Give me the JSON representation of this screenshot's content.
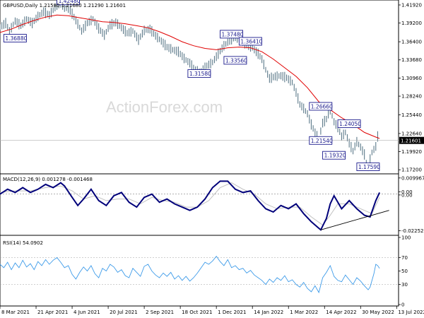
{
  "chart_data": [
    {
      "type": "candlestick",
      "pane": "price",
      "header": "GBPUSD,Daily  1.21580 1.21680 1.21290 1.21601",
      "symbol": "GBPUSD",
      "timeframe": "Daily",
      "ohlc": {
        "open": 1.2158,
        "high": 1.2168,
        "low": 1.2129,
        "close": 1.21601
      },
      "ylim": [
        1.168,
        1.4245
      ],
      "y_ticks": [
        "1.41920",
        "1.39200",
        "1.36400",
        "1.33680",
        "1.30960",
        "1.28240",
        "1.25440",
        "1.22640",
        "1.19920",
        "1.17200"
      ],
      "current_price_label": "1.21601",
      "current_price": 1.21601,
      "moving_average_color": "#e00000",
      "candle_color": "#5c7a8a",
      "series_path": [
        [
          0,
          1.386
        ],
        [
          3,
          1.392
        ],
        [
          5,
          1.38
        ],
        [
          8,
          1.395
        ],
        [
          11,
          1.388
        ],
        [
          14,
          1.398
        ],
        [
          17,
          1.392
        ],
        [
          20,
          1.402
        ],
        [
          23,
          1.409
        ],
        [
          26,
          1.404
        ],
        [
          29,
          1.415
        ],
        [
          31,
          1.422
        ],
        [
          34,
          1.416
        ],
        [
          37,
          1.411
        ],
        [
          40,
          1.396
        ],
        [
          43,
          1.38
        ],
        [
          46,
          1.392
        ],
        [
          49,
          1.398
        ],
        [
          52,
          1.384
        ],
        [
          55,
          1.374
        ],
        [
          58,
          1.389
        ],
        [
          61,
          1.393
        ],
        [
          64,
          1.385
        ],
        [
          67,
          1.377
        ],
        [
          70,
          1.38
        ],
        [
          73,
          1.367
        ],
        [
          76,
          1.381
        ],
        [
          79,
          1.383
        ],
        [
          82,
          1.373
        ],
        [
          85,
          1.365
        ],
        [
          88,
          1.356
        ],
        [
          91,
          1.352
        ],
        [
          94,
          1.349
        ],
        [
          97,
          1.339
        ],
        [
          100,
          1.332
        ],
        [
          103,
          1.321
        ],
        [
          106,
          1.319
        ],
        [
          109,
          1.328
        ],
        [
          112,
          1.333
        ],
        [
          115,
          1.346
        ],
        [
          118,
          1.358
        ],
        [
          121,
          1.366
        ],
        [
          124,
          1.371
        ],
        [
          127,
          1.367
        ],
        [
          130,
          1.359
        ],
        [
          133,
          1.355
        ],
        [
          136,
          1.346
        ],
        [
          138,
          1.338
        ],
        [
          140,
          1.322
        ],
        [
          142,
          1.309
        ],
        [
          145,
          1.312
        ],
        [
          148,
          1.313
        ],
        [
          151,
          1.31
        ],
        [
          154,
          1.303
        ],
        [
          156,
          1.288
        ],
        [
          158,
          1.27
        ],
        [
          160,
          1.264
        ],
        [
          162,
          1.256
        ],
        [
          164,
          1.24
        ],
        [
          166,
          1.228
        ],
        [
          168,
          1.218
        ],
        [
          170,
          1.242
        ],
        [
          172,
          1.248
        ],
        [
          174,
          1.262
        ],
        [
          176,
          1.244
        ],
        [
          178,
          1.236
        ],
        [
          180,
          1.222
        ],
        [
          182,
          1.228
        ],
        [
          184,
          1.212
        ],
        [
          186,
          1.2
        ],
        [
          188,
          1.214
        ],
        [
          190,
          1.206
        ],
        [
          192,
          1.195
        ],
        [
          193,
          1.182
        ],
        [
          194,
          1.176
        ],
        [
          195,
          1.188
        ],
        [
          196,
          1.198
        ],
        [
          198,
          1.207
        ],
        [
          199,
          1.222
        ],
        [
          200,
          1.216
        ]
      ],
      "ma_path": [
        [
          0,
          1.378
        ],
        [
          6,
          1.383
        ],
        [
          12,
          1.39
        ],
        [
          18,
          1.396
        ],
        [
          24,
          1.401
        ],
        [
          30,
          1.404
        ],
        [
          36,
          1.403
        ],
        [
          42,
          1.4
        ],
        [
          48,
          1.397
        ],
        [
          54,
          1.394
        ],
        [
          60,
          1.393
        ],
        [
          66,
          1.391
        ],
        [
          72,
          1.388
        ],
        [
          78,
          1.385
        ],
        [
          84,
          1.379
        ],
        [
          90,
          1.372
        ],
        [
          96,
          1.364
        ],
        [
          102,
          1.358
        ],
        [
          108,
          1.354
        ],
        [
          114,
          1.352
        ],
        [
          120,
          1.355
        ],
        [
          126,
          1.356
        ],
        [
          132,
          1.355
        ],
        [
          138,
          1.349
        ],
        [
          144,
          1.338
        ],
        [
          150,
          1.325
        ],
        [
          156,
          1.312
        ],
        [
          162,
          1.295
        ],
        [
          168,
          1.274
        ],
        [
          174,
          1.262
        ],
        [
          180,
          1.25
        ],
        [
          186,
          1.24
        ],
        [
          192,
          1.228
        ],
        [
          198,
          1.221
        ],
        [
          200,
          1.219
        ]
      ],
      "annotations": [
        {
          "text": "1.42480",
          "x": 30,
          "y": 1.4248
        },
        {
          "text": "1.36880",
          "x": 2,
          "y": 1.3688
        },
        {
          "text": "1.37480",
          "x": 116,
          "y": 1.3748
        },
        {
          "text": "1.36410",
          "x": 126,
          "y": 1.3641
        },
        {
          "text": "1.33560",
          "x": 118,
          "y": 1.3356
        },
        {
          "text": "1.31580",
          "x": 99,
          "y": 1.3158
        },
        {
          "text": "1.26660",
          "x": 163,
          "y": 1.2666
        },
        {
          "text": "1.24050",
          "x": 178,
          "y": 1.2405
        },
        {
          "text": "1.21540",
          "x": 163,
          "y": 1.2154
        },
        {
          "text": "1.19320",
          "x": 170,
          "y": 1.1932
        },
        {
          "text": "1.17590",
          "x": 188,
          "y": 1.1759
        }
      ],
      "watermark": "ActionForex.com"
    },
    {
      "type": "line",
      "pane": "macd",
      "header": "MACD(12,26,9) 0.001278 -0.001468",
      "name": "MACD(12,26,9)",
      "macd": 0.001278,
      "signal": -0.001468,
      "ylim": [
        -0.0245,
        0.0112
      ],
      "y_ticks": [
        "0.009967",
        "0.00",
        "0.00",
        "-0.022521"
      ],
      "macd_color": "#00007a",
      "signal_color": "#c0c0c0",
      "zero_line_color": "#808080",
      "trendline_color": "#000000",
      "macd_path": [
        [
          0,
          0.0
        ],
        [
          4,
          0.003
        ],
        [
          8,
          0.001
        ],
        [
          12,
          0.004
        ],
        [
          16,
          0.001
        ],
        [
          20,
          0.003
        ],
        [
          24,
          0.006
        ],
        [
          28,
          0.004
        ],
        [
          32,
          0.007
        ],
        [
          34,
          0.005
        ],
        [
          38,
          -0.002
        ],
        [
          41,
          -0.007
        ],
        [
          44,
          -0.003
        ],
        [
          48,
          0.003
        ],
        [
          52,
          -0.004
        ],
        [
          56,
          -0.007
        ],
        [
          60,
          -0.001
        ],
        [
          64,
          0.001
        ],
        [
          68,
          -0.005
        ],
        [
          72,
          -0.008
        ],
        [
          76,
          -0.002
        ],
        [
          80,
          0.0
        ],
        [
          84,
          -0.005
        ],
        [
          88,
          -0.003
        ],
        [
          92,
          -0.006
        ],
        [
          96,
          -0.008
        ],
        [
          100,
          -0.01
        ],
        [
          104,
          -0.008
        ],
        [
          108,
          -0.003
        ],
        [
          112,
          0.004
        ],
        [
          116,
          0.008
        ],
        [
          120,
          0.008
        ],
        [
          124,
          0.003
        ],
        [
          128,
          0.001
        ],
        [
          132,
          0.002
        ],
        [
          136,
          -0.004
        ],
        [
          140,
          -0.009
        ],
        [
          144,
          -0.011
        ],
        [
          148,
          -0.007
        ],
        [
          152,
          -0.009
        ],
        [
          156,
          -0.006
        ],
        [
          160,
          -0.012
        ],
        [
          164,
          -0.017
        ],
        [
          168,
          -0.021
        ],
        [
          169,
          -0.022
        ],
        [
          172,
          -0.015
        ],
        [
          174,
          -0.006
        ],
        [
          176,
          -0.001
        ],
        [
          178,
          -0.005
        ],
        [
          180,
          -0.009
        ],
        [
          184,
          -0.004
        ],
        [
          188,
          -0.009
        ],
        [
          192,
          -0.013
        ],
        [
          195,
          -0.014
        ],
        [
          198,
          -0.004
        ],
        [
          200,
          0.001
        ]
      ],
      "signal_path": [
        [
          0,
          0.001
        ],
        [
          8,
          0.002
        ],
        [
          16,
          0.002
        ],
        [
          24,
          0.004
        ],
        [
          32,
          0.005
        ],
        [
          38,
          0.002
        ],
        [
          44,
          -0.003
        ],
        [
          50,
          -0.001
        ],
        [
          56,
          -0.004
        ],
        [
          62,
          -0.003
        ],
        [
          68,
          -0.003
        ],
        [
          74,
          -0.006
        ],
        [
          80,
          -0.002
        ],
        [
          86,
          -0.004
        ],
        [
          92,
          -0.005
        ],
        [
          98,
          -0.008
        ],
        [
          104,
          -0.008
        ],
        [
          110,
          -0.004
        ],
        [
          116,
          0.004
        ],
        [
          122,
          0.007
        ],
        [
          128,
          0.003
        ],
        [
          134,
          0.0
        ],
        [
          140,
          -0.006
        ],
        [
          146,
          -0.009
        ],
        [
          152,
          -0.008
        ],
        [
          158,
          -0.008
        ],
        [
          164,
          -0.014
        ],
        [
          170,
          -0.019
        ],
        [
          174,
          -0.013
        ],
        [
          178,
          -0.006
        ],
        [
          184,
          -0.006
        ],
        [
          190,
          -0.009
        ],
        [
          196,
          -0.012
        ],
        [
          200,
          -0.002
        ]
      ],
      "trendline": [
        [
          169,
          -0.022
        ],
        [
          205,
          -0.01
        ]
      ]
    },
    {
      "type": "line",
      "pane": "rsi",
      "header": "RSI(14) 54.0902",
      "name": "RSI(14)",
      "value": 54.0902,
      "ylim": [
        0,
        100
      ],
      "y_ticks": [
        "100",
        "70",
        "50",
        "30",
        "0"
      ],
      "level_lines": [
        70,
        30
      ],
      "line_color": "#3d9be9",
      "series_path": [
        [
          0,
          60
        ],
        [
          2,
          55
        ],
        [
          4,
          63
        ],
        [
          6,
          52
        ],
        [
          8,
          62
        ],
        [
          10,
          55
        ],
        [
          12,
          66
        ],
        [
          14,
          56
        ],
        [
          16,
          61
        ],
        [
          18,
          52
        ],
        [
          20,
          64
        ],
        [
          22,
          58
        ],
        [
          24,
          67
        ],
        [
          26,
          60
        ],
        [
          28,
          66
        ],
        [
          30,
          70
        ],
        [
          32,
          63
        ],
        [
          34,
          55
        ],
        [
          36,
          58
        ],
        [
          38,
          45
        ],
        [
          40,
          38
        ],
        [
          42,
          48
        ],
        [
          44,
          56
        ],
        [
          46,
          50
        ],
        [
          48,
          58
        ],
        [
          50,
          46
        ],
        [
          52,
          40
        ],
        [
          54,
          54
        ],
        [
          56,
          50
        ],
        [
          58,
          60
        ],
        [
          60,
          56
        ],
        [
          62,
          48
        ],
        [
          64,
          52
        ],
        [
          66,
          43
        ],
        [
          68,
          40
        ],
        [
          70,
          54
        ],
        [
          72,
          48
        ],
        [
          74,
          42
        ],
        [
          76,
          57
        ],
        [
          78,
          60
        ],
        [
          80,
          50
        ],
        [
          82,
          44
        ],
        [
          84,
          40
        ],
        [
          86,
          47
        ],
        [
          88,
          42
        ],
        [
          90,
          48
        ],
        [
          92,
          38
        ],
        [
          94,
          43
        ],
        [
          96,
          36
        ],
        [
          98,
          42
        ],
        [
          100,
          35
        ],
        [
          102,
          40
        ],
        [
          104,
          47
        ],
        [
          106,
          55
        ],
        [
          108,
          63
        ],
        [
          110,
          60
        ],
        [
          112,
          65
        ],
        [
          114,
          72
        ],
        [
          116,
          64
        ],
        [
          118,
          58
        ],
        [
          120,
          67
        ],
        [
          122,
          55
        ],
        [
          124,
          58
        ],
        [
          126,
          52
        ],
        [
          128,
          54
        ],
        [
          130,
          47
        ],
        [
          132,
          51
        ],
        [
          134,
          44
        ],
        [
          136,
          40
        ],
        [
          138,
          36
        ],
        [
          140,
          30
        ],
        [
          142,
          38
        ],
        [
          144,
          33
        ],
        [
          146,
          40
        ],
        [
          148,
          36
        ],
        [
          150,
          43
        ],
        [
          152,
          34
        ],
        [
          154,
          37
        ],
        [
          156,
          30
        ],
        [
          158,
          26
        ],
        [
          160,
          33
        ],
        [
          162,
          24
        ],
        [
          164,
          19
        ],
        [
          166,
          28
        ],
        [
          168,
          18
        ],
        [
          170,
          40
        ],
        [
          172,
          48
        ],
        [
          174,
          58
        ],
        [
          176,
          42
        ],
        [
          178,
          36
        ],
        [
          180,
          34
        ],
        [
          182,
          44
        ],
        [
          184,
          37
        ],
        [
          186,
          30
        ],
        [
          188,
          40
        ],
        [
          190,
          35
        ],
        [
          192,
          28
        ],
        [
          194,
          22
        ],
        [
          195,
          26
        ],
        [
          197,
          46
        ],
        [
          198,
          60
        ],
        [
          199,
          58
        ],
        [
          200,
          54
        ]
      ]
    }
  ],
  "x_axis": {
    "ticks": [
      "8 Mar 2021",
      "21 Apr 2021",
      "4 Jun 2021",
      "20 Jul 2021",
      "2 Sep 2021",
      "18 Oct 2021",
      "1 Dec 2021",
      "14 Jan 2022",
      "1 Mar 2022",
      "14 Apr 2022",
      "30 May 2022",
      "13 Jul 2022"
    ],
    "tick_index": [
      0,
      19,
      38,
      57,
      76,
      95,
      114,
      133,
      152,
      171,
      190,
      209
    ]
  },
  "x_domain": [
    0,
    210
  ]
}
